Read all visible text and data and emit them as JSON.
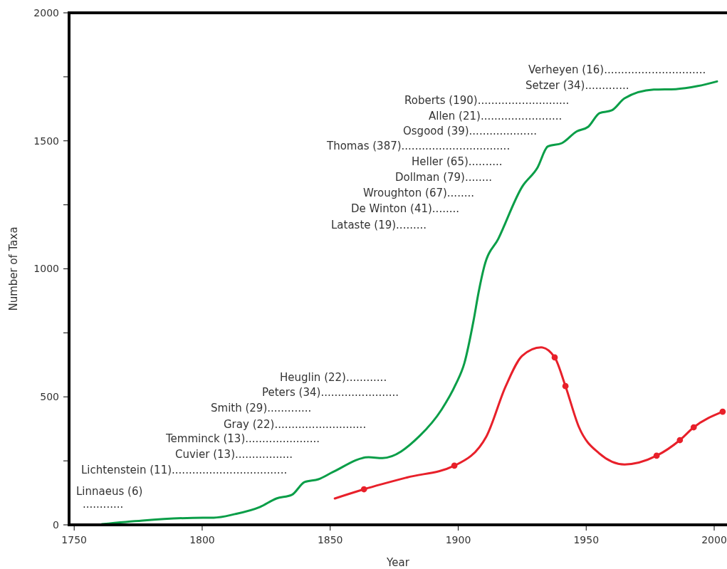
{
  "chart_data": {
    "type": "line",
    "xlabel": "Year",
    "ylabel": "Number of Taxa",
    "xlim": [
      1748,
      2005
    ],
    "xticks": [
      1750,
      1800,
      1850,
      1900,
      1950,
      2000
    ],
    "ylim": [
      0,
      2000
    ],
    "yticks": [
      0,
      {
        "value": 250,
        "label": null
      },
      500,
      {
        "value": 750,
        "label": null
      },
      1000,
      {
        "value": 1250,
        "label": null
      },
      1500,
      {
        "value": 1750,
        "label": null
      },
      2000
    ],
    "grid": false,
    "series": [
      {
        "color": "#0a9e48",
        "marker": "none",
        "x": [
          1760.8,
          1776.7,
          1800.3,
          1804.5,
          1812.8,
          1822.6,
          1829,
          1835,
          1840,
          1845.4,
          1851,
          1865,
          1870.4,
          1885,
          1893.5,
          1899,
          1902.4,
          1906,
          1908,
          1910.2,
          1915.7,
          1925,
          1931,
          1935,
          1940.5,
          1946.3,
          1950.8,
          1955.2,
          1960,
          1965,
          1976.4,
          1985,
          1993.6,
          2001.1
        ],
        "values": [
          3,
          17,
          28,
          28,
          42,
          70,
          103,
          117,
          167,
          178,
          206,
          264,
          261,
          348,
          450,
          548,
          631,
          798,
          910,
          1010,
          1118,
          1321,
          1396,
          1478,
          1491,
          1537,
          1555,
          1608,
          1619,
          1666,
          1700,
          1702,
          1714,
          1732
        ]
      },
      {
        "color": "#e8202a",
        "marker": "none",
        "x": [
          1851.8,
          1863.2,
          1880,
          1898.5,
          1911,
          1918.5,
          1925,
          1932.4,
          1937.7,
          1941.9,
          1947.2,
          1955,
          1965,
          1977.5,
          1986.6,
          1992,
          2003.3
        ],
        "values": [
          103,
          139,
          185,
          231,
          345,
          540,
          660,
          693,
          654,
          542,
          381,
          280,
          236,
          270,
          331,
          381,
          442
        ]
      },
      {
        "type": "scatter",
        "color": "#e8202a",
        "marker": "circle",
        "x": [
          1863.2,
          1898.5,
          1937.7,
          1941.9,
          1977.5,
          1986.6,
          1992,
          2003.3
        ],
        "values": [
          139,
          231,
          654,
          542,
          270,
          331,
          381,
          442
        ]
      }
    ],
    "annotations": [
      "Linnaeus (6)",
      "............",
      "Lichtenstein (11)..................................",
      "Cuvier (13).................",
      "Temminck (13)......................",
      "Gray (22)...........................",
      "Smith (29).............",
      "Peters (34).......................",
      "Heuglin (22)............",
      "Lataste (19).........",
      "De Winton (41)........",
      "Wroughton (67)........",
      "Dollman (79)........",
      "Heller (65)..........",
      "Thomas (387)................................",
      "Osgood (39)....................",
      "Allen (21)........................",
      "Roberts (190)...........................",
      "Setzer (34).............",
      "Verheyen (16).............................."
    ]
  }
}
